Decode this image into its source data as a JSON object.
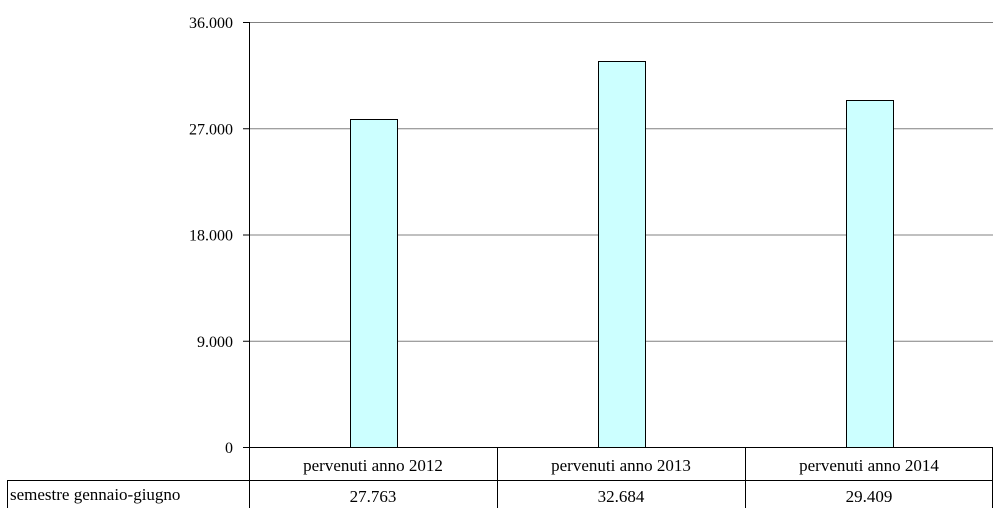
{
  "chart_data": {
    "type": "bar",
    "title": "",
    "xlabel": "",
    "ylabel": "",
    "categories": [
      "pervenuti anno 2012",
      "pervenuti anno 2013",
      "pervenuti anno 2014"
    ],
    "series": [
      {
        "name": "semestre gennaio-giugno",
        "values": [
          27763,
          32684,
          29409
        ]
      }
    ],
    "value_labels": [
      "27.763",
      "32.684",
      "29.409"
    ],
    "ylim": [
      0,
      36000
    ],
    "yticks": [
      0,
      9000,
      18000,
      27000,
      36000
    ],
    "ytick_labels": [
      "0",
      "9.000",
      "18.000",
      "27.000",
      "36.000"
    ],
    "grid": true,
    "data_table": true,
    "bar_color": "#ccffff",
    "bar_border_color": "#000000",
    "grid_color": "#808080"
  }
}
